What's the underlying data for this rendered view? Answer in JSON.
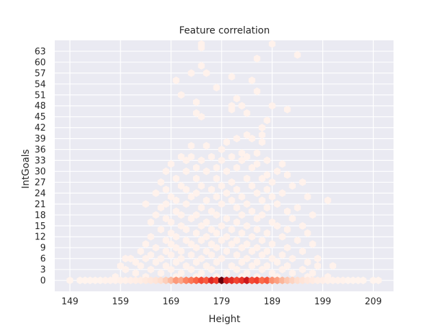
{
  "chart_data": {
    "type": "heatmap",
    "subtype": "hexbin",
    "title": "Feature correlation",
    "xlabel": "Height",
    "ylabel": "IntGoals",
    "xlim": [
      146,
      213
    ],
    "ylim": [
      -3,
      66
    ],
    "x_ticks": [
      149,
      159,
      169,
      179,
      189,
      199,
      209
    ],
    "y_ticks": [
      0,
      3,
      6,
      9,
      12,
      15,
      18,
      21,
      24,
      27,
      30,
      33,
      36,
      39,
      42,
      45,
      48,
      51,
      54,
      57,
      60,
      63
    ],
    "grid": true,
    "background_color": "#eaeaf2",
    "grid_color": "#ffffff",
    "colormap": "Reds",
    "colors": {
      "low": "#fff5f0",
      "mid": "#fb6a4a",
      "high": "#67000d"
    },
    "zero_row_density": [
      {
        "x": 149,
        "d": 0.01
      },
      {
        "x": 151,
        "d": 0.01
      },
      {
        "x": 152,
        "d": 0.01
      },
      {
        "x": 153,
        "d": 0.01
      },
      {
        "x": 154,
        "d": 0.01
      },
      {
        "x": 155,
        "d": 0.01
      },
      {
        "x": 156,
        "d": 0.02
      },
      {
        "x": 157,
        "d": 0.02
      },
      {
        "x": 158,
        "d": 0.02
      },
      {
        "x": 159,
        "d": 0.03
      },
      {
        "x": 160,
        "d": 0.03
      },
      {
        "x": 161,
        "d": 0.04
      },
      {
        "x": 162,
        "d": 0.05
      },
      {
        "x": 163,
        "d": 0.06
      },
      {
        "x": 164,
        "d": 0.08
      },
      {
        "x": 165,
        "d": 0.1
      },
      {
        "x": 166,
        "d": 0.12
      },
      {
        "x": 167,
        "d": 0.16
      },
      {
        "x": 168,
        "d": 0.22
      },
      {
        "x": 169,
        "d": 0.3
      },
      {
        "x": 170,
        "d": 0.42
      },
      {
        "x": 171,
        "d": 0.38
      },
      {
        "x": 172,
        "d": 0.5
      },
      {
        "x": 173,
        "d": 0.55
      },
      {
        "x": 174,
        "d": 0.62
      },
      {
        "x": 175,
        "d": 0.7
      },
      {
        "x": 176,
        "d": 0.65
      },
      {
        "x": 177,
        "d": 0.82
      },
      {
        "x": 178,
        "d": 0.75
      },
      {
        "x": 179,
        "d": 1.0
      },
      {
        "x": 180,
        "d": 0.85
      },
      {
        "x": 181,
        "d": 0.8
      },
      {
        "x": 182,
        "d": 0.72
      },
      {
        "x": 183,
        "d": 0.78
      },
      {
        "x": 184,
        "d": 0.88
      },
      {
        "x": 185,
        "d": 0.7
      },
      {
        "x": 186,
        "d": 0.74
      },
      {
        "x": 187,
        "d": 0.6
      },
      {
        "x": 188,
        "d": 0.65
      },
      {
        "x": 189,
        "d": 0.45
      },
      {
        "x": 190,
        "d": 0.4
      },
      {
        "x": 191,
        "d": 0.32
      },
      {
        "x": 192,
        "d": 0.25
      },
      {
        "x": 193,
        "d": 0.2
      },
      {
        "x": 194,
        "d": 0.16
      },
      {
        "x": 195,
        "d": 0.12
      },
      {
        "x": 196,
        "d": 0.09
      },
      {
        "x": 197,
        "d": 0.07
      },
      {
        "x": 198,
        "d": 0.05
      },
      {
        "x": 199,
        "d": 0.04
      },
      {
        "x": 200,
        "d": 0.03
      },
      {
        "x": 201,
        "d": 0.02
      },
      {
        "x": 202,
        "d": 0.02
      },
      {
        "x": 203,
        "d": 0.02
      },
      {
        "x": 204,
        "d": 0.01
      },
      {
        "x": 205,
        "d": 0.01
      },
      {
        "x": 206,
        "d": 0.01
      },
      {
        "x": 207,
        "d": 0.01
      },
      {
        "x": 209,
        "d": 0.01
      },
      {
        "x": 210,
        "d": 0.01
      }
    ],
    "points": [
      [
        175,
        64
      ],
      [
        175,
        65
      ],
      [
        189,
        65
      ],
      [
        194,
        62
      ],
      [
        186,
        61
      ],
      [
        175,
        59
      ],
      [
        173,
        57
      ],
      [
        176,
        57
      ],
      [
        181,
        56
      ],
      [
        170,
        55
      ],
      [
        185,
        55
      ],
      [
        178,
        53
      ],
      [
        171,
        51
      ],
      [
        186,
        52
      ],
      [
        182,
        50
      ],
      [
        174,
        49
      ],
      [
        181,
        48
      ],
      [
        183,
        48
      ],
      [
        189,
        48
      ],
      [
        181,
        47
      ],
      [
        184,
        46
      ],
      [
        174,
        46
      ],
      [
        175,
        45
      ],
      [
        192,
        47
      ],
      [
        188,
        44
      ],
      [
        187,
        42
      ],
      [
        187,
        40
      ],
      [
        184,
        40
      ],
      [
        182,
        39
      ],
      [
        185,
        39
      ],
      [
        187,
        38
      ],
      [
        180,
        38
      ],
      [
        176,
        37
      ],
      [
        173,
        37
      ],
      [
        179,
        36
      ],
      [
        183,
        35
      ],
      [
        186,
        35
      ],
      [
        171,
        34
      ],
      [
        173,
        34
      ],
      [
        177,
        34
      ],
      [
        181,
        34
      ],
      [
        184,
        34
      ],
      [
        188,
        33
      ],
      [
        172,
        33
      ],
      [
        175,
        33
      ],
      [
        179,
        33
      ],
      [
        183,
        33
      ],
      [
        169,
        32
      ],
      [
        186,
        32
      ],
      [
        191,
        32
      ],
      [
        174,
        31
      ],
      [
        178,
        31
      ],
      [
        182,
        31
      ],
      [
        185,
        31
      ],
      [
        190,
        30
      ],
      [
        168,
        30
      ],
      [
        172,
        30
      ],
      [
        176,
        30
      ],
      [
        180,
        30
      ],
      [
        188,
        29
      ],
      [
        192,
        29
      ],
      [
        170,
        28
      ],
      [
        174,
        28
      ],
      [
        178,
        28
      ],
      [
        184,
        28
      ],
      [
        187,
        28
      ],
      [
        167,
        27
      ],
      [
        181,
        27
      ],
      [
        189,
        27
      ],
      [
        195,
        27
      ],
      [
        171,
        26
      ],
      [
        175,
        26
      ],
      [
        179,
        26
      ],
      [
        185,
        26
      ],
      [
        193,
        26
      ],
      [
        168,
        25
      ],
      [
        172,
        25
      ],
      [
        177,
        25
      ],
      [
        182,
        25
      ],
      [
        188,
        25
      ],
      [
        166,
        24
      ],
      [
        174,
        24
      ],
      [
        180,
        24
      ],
      [
        186,
        24
      ],
      [
        191,
        24
      ],
      [
        169,
        23
      ],
      [
        173,
        23
      ],
      [
        178,
        23
      ],
      [
        183,
        23
      ],
      [
        189,
        23
      ],
      [
        196,
        23
      ],
      [
        170,
        22
      ],
      [
        176,
        22
      ],
      [
        181,
        22
      ],
      [
        187,
        22
      ],
      [
        200,
        22
      ],
      [
        164,
        21
      ],
      [
        168,
        21
      ],
      [
        172,
        21
      ],
      [
        179,
        21
      ],
      [
        184,
        21
      ],
      [
        190,
        21
      ],
      [
        167,
        20
      ],
      [
        175,
        20
      ],
      [
        182,
        20
      ],
      [
        188,
        20
      ],
      [
        194,
        20
      ],
      [
        170,
        19
      ],
      [
        177,
        19
      ],
      [
        185,
        19
      ],
      [
        192,
        19
      ],
      [
        166,
        18
      ],
      [
        171,
        18
      ],
      [
        174,
        18
      ],
      [
        178,
        18
      ],
      [
        183,
        18
      ],
      [
        187,
        18
      ],
      [
        197,
        18
      ],
      [
        168,
        17
      ],
      [
        173,
        17
      ],
      [
        180,
        17
      ],
      [
        186,
        17
      ],
      [
        193,
        17
      ],
      [
        165,
        16
      ],
      [
        169,
        16
      ],
      [
        176,
        16
      ],
      [
        182,
        16
      ],
      [
        189,
        16
      ],
      [
        171,
        15
      ],
      [
        175,
        15
      ],
      [
        179,
        15
      ],
      [
        184,
        15
      ],
      [
        190,
        15
      ],
      [
        195,
        15
      ],
      [
        167,
        14
      ],
      [
        172,
        14
      ],
      [
        177,
        14
      ],
      [
        181,
        14
      ],
      [
        186,
        14
      ],
      [
        192,
        14
      ],
      [
        169,
        13
      ],
      [
        174,
        13
      ],
      [
        178,
        13
      ],
      [
        183,
        13
      ],
      [
        188,
        13
      ],
      [
        196,
        13
      ],
      [
        165,
        12
      ],
      [
        170,
        12
      ],
      [
        176,
        12
      ],
      [
        180,
        12
      ],
      [
        185,
        12
      ],
      [
        191,
        12
      ],
      [
        168,
        11
      ],
      [
        172,
        11
      ],
      [
        175,
        11
      ],
      [
        179,
        11
      ],
      [
        182,
        11
      ],
      [
        187,
        11
      ],
      [
        194,
        11
      ],
      [
        164,
        10
      ],
      [
        169,
        10
      ],
      [
        173,
        10
      ],
      [
        177,
        10
      ],
      [
        181,
        10
      ],
      [
        184,
        10
      ],
      [
        189,
        10
      ],
      [
        197,
        10
      ],
      [
        166,
        9
      ],
      [
        170,
        9
      ],
      [
        174,
        9
      ],
      [
        178,
        9
      ],
      [
        183,
        9
      ],
      [
        186,
        9
      ],
      [
        192,
        9
      ],
      [
        163,
        8
      ],
      [
        168,
        8
      ],
      [
        171,
        8
      ],
      [
        176,
        8
      ],
      [
        180,
        8
      ],
      [
        185,
        8
      ],
      [
        188,
        8
      ],
      [
        195,
        8
      ],
      [
        165,
        7
      ],
      [
        169,
        7
      ],
      [
        173,
        7
      ],
      [
        177,
        7
      ],
      [
        182,
        7
      ],
      [
        187,
        7
      ],
      [
        191,
        7
      ],
      [
        161,
        6
      ],
      [
        160,
        6
      ],
      [
        164,
        6
      ],
      [
        167,
        6
      ],
      [
        171,
        6
      ],
      [
        175,
        6
      ],
      [
        179,
        6
      ],
      [
        184,
        6
      ],
      [
        189,
        6
      ],
      [
        193,
        6
      ],
      [
        198,
        6
      ],
      [
        162,
        5
      ],
      [
        166,
        5
      ],
      [
        170,
        5
      ],
      [
        174,
        5
      ],
      [
        178,
        5
      ],
      [
        183,
        5
      ],
      [
        186,
        5
      ],
      [
        190,
        5
      ],
      [
        196,
        5
      ],
      [
        159,
        4
      ],
      [
        163,
        4
      ],
      [
        168,
        4
      ],
      [
        172,
        4
      ],
      [
        176,
        4
      ],
      [
        181,
        4
      ],
      [
        185,
        4
      ],
      [
        188,
        4
      ],
      [
        192,
        4
      ],
      [
        198,
        4
      ],
      [
        201,
        4
      ],
      [
        160,
        3
      ],
      [
        165,
        3
      ],
      [
        169,
        3
      ],
      [
        173,
        3
      ],
      [
        177,
        3
      ],
      [
        182,
        3
      ],
      [
        187,
        3
      ],
      [
        191,
        3
      ],
      [
        195,
        3
      ],
      [
        162,
        2
      ],
      [
        167,
        2
      ],
      [
        171,
        2
      ],
      [
        175,
        2
      ],
      [
        180,
        2
      ],
      [
        184,
        2
      ],
      [
        189,
        2
      ],
      [
        193,
        2
      ],
      [
        197,
        2
      ],
      [
        158,
        1
      ],
      [
        164,
        1
      ],
      [
        170,
        1
      ],
      [
        174,
        1
      ],
      [
        178,
        1
      ],
      [
        183,
        1
      ],
      [
        186,
        1
      ],
      [
        190,
        1
      ],
      [
        196,
        1
      ],
      [
        200,
        1
      ]
    ]
  }
}
